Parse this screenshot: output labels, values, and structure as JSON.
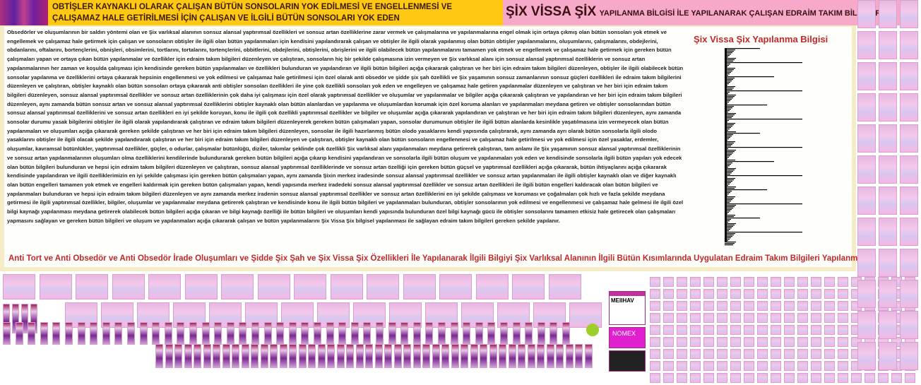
{
  "header": {
    "left_title": "OBTİŞLER KAYNAKLI OLARAK ÇALIŞAN BÜTÜN SONSOLARIN YOK EDİLMESİ VE ENGELLENMESİ VE ÇALIŞAMAZ HALE GETİRİLMESİ İÇİN ÇALIŞAN VE İLGİLİ BÜTÜN SONSOLARI YOK EDEN",
    "right_title_big": "ŞİX VİSSA ŞİX",
    "right_title_small": "YAPILANMA BİLGİSİ İLE YAPILANARAK ÇALIŞAN EDRAİM TAKIM BİLGİLERİ"
  },
  "main": {
    "paragraph": "Obsedörler ve oluşumlarının bir saldırı yöntemi olan ve Şix varlıksal alanının sonsuz alansal yaptırımsal özellikleri ve sonsuz artan özelliklerine zarar vermek ve çalışmalarına ve yapılanmalarına engel olmak için ortaya çıkmış olan bütün sonsoları yok etmek ve engellemek ve çalışamaz hale getirmek için çalışan ve sonsoların obtişler ile ilgili olan bütün yapılanmaları için kendisini yapılandırarak çalışan ve obtişler ile ilgili olarak yapılanmış olan bütün obtişler yapılanmalarını, oluşumlarını, çalışmalarını, obdejlerini, obdanlarını, oftalarını, bortençlerini, obnişleri, obsimlerini, tortlarını, tortalarını, tortençlerini, obbitlerini, obdejlerini, obtişlerini, obrişlerini ve ilgili olabilecek bütün yapılanmalarını tamamen yok etmek ve engellemek ve çalışamaz hale getirmek için gereken bütün çalışmaları yapan ve ortaya çıkan bütün yapılanmalar ve özellikler için edraim takım bilgileri düzenleyen ve çalıştıran, sonsoların hiç bir şekilde çalışmasına izin vermeyen ve Şix varlıksal alanı için sonsuz alansal yaptırımsal özelliklerin ve sonsuz artan yapılanmalarının her zaman ve koşulda çalışması için kendisinde gereken bütün yapılanmaları ve özellikleri bulunduran ve yapılandıran ve ilgili bütün bilgileri açığa çıkararak çalıştıran ve her biri için edraim takım bilgileri düzenleyen, obtişler ile ilgili olabilecek bütün sonsolar yapılanma ve özelliklerini ortaya çıkararak hepsinin engellenmesi ve yok edilmesi ve çalışamaz hale getirilmesi için özel olarak anti obsedör ve şidde şix şah özellikli ve Şix yaşamının sonsuz zamanlarının sonsuz güçleri özellikleri ile edraim takım bilgilerini düzenleyen ve çalıştıran, obtişler kaynaklı olan bütün sonsoları ortaya çıkararak anti obtişler sonsoları özellikleri ile yine çok özellikli sonsoları yok eden ve engelleyen ve çalışamaz hale getiren yapılanmalar düzenleyen ve çalıştıran ve her biri için edraim takım bilgileri düzenleyen, sonsuz alansal yaptırımsal özellikler ve sonsuz artan özelliklerinin çok daha iyi çalışması için özel olarak yaptırımsal özellikler ve oluşumlar ve yapılanmalar ve bilgiler açığa çıkararak çalıştıran ve yapılandıran ve her biri için edraim takım bilgileri düzenleyen, aynı zamanda bütün sonsuz artan ve sonsuz alansal yaptırımsal özelliklerini obtişler kaynaklı olan bütün alanlardan ve yapılanma ve oluşumlardan korumak için özel koruma alanları ve yapılanmaları meydana getiren ve obtişler sonsolarından bütün sonsuz alansal yaptırımsal özelliklerini ve sonsuz artan özellikleri en iyi şekilde koruyan, konu ile ilgili çok özellikli yaptırımsal özellikler ve bilgiler ve oluşumlar açığa çıkararak yapılandıran ve çalıştıran ve her biri için edraim takım bilgileri düzenleyen, aynı zamanda sonsolar durumu yasak bilgilerini obtişler ile ilgili olarak yapılandırarak çalıştıran ve edraim takım bilgileri düzenleyerek gereken bütün çalışmaları yapan, sonsolar durumunun obtişler ile ilgili bütün alanlarda kesinlikle yaşatılmasına izin vermeyecek olan bütün yapılanmaları ve oluşumları açığa çıkararak gereken şekilde çalıştıran ve her biri için edraim takım bilgileri düzenleyen, sonsolar ile ilgili hazırlanmış bütün olodo yasaklarını kendi yapısında çalıştırarak, aynı zamanda ayrı olarak bütün sonsolarla ilgili olodo yasaklarını obtişler ile ilgili olacak şekilde yapılandırarak çalıştıran ve her biri için edraim takım bilgileri düzenleyen ve çalıştıran, obtişler kaynaklı olan bütün sonsoların engellenmesi ve çalışamaz hale getirilmesi ve yok edilmesi için özel yasaklar, erdemler, oluşumlar, kavramsal bütünlükler, yaptırımsal özellikler, güçler, o odurlar, çalışmalar bütünlüğü, diziler, takımlar şeklinde çok özellikli Şix varlıksal alanı yapılanmaları meydana getirerek çalıştıran, tam anlamı ile Şix yaşamının sonsuz alansal yaptırımsal özelliklerinin ve sonsuz artan yapılanmalarının oluşumları olma özelliklerini kendilerinde bulundurarak gereken bütün bilgileri açığa çıkarıp kendisini yapılandıran ve sonsolarla ilgili bütün oluşum ve yapılanmaları yok eden ve kendisinde sonsolarla ilgili bütün yapıları yok edecek olan bütün bilgileri bulunduran ve hepsi için edraim takım bilgileri düzenleyen ve çalıştıran, sonsuz alansal yaptırımsal özelliklerinde ve sonsuz artan özelliği için gereken bütün güçsel ve yaptırımsal özellikleri açığa çıkararak, bütün ihtiyaçlarını açığa çıkararak kendisinde yapılandıran ve ilgili özelliklerimizin en iyi şekilde çalışması için gereken bütün çalışmaları yapan, aynı zamanda Şixin merkez iradesinde sonsuz alansal yaptırımsal özellikler ve sonsuz artan yapılanmaları ile ilgili obtişler kaynaklı olan ve diğer kaynaklı olan bütün engelleri tamamen yok etmek ve engelleri kaldırmak için gereken bütün çalışmaları yapan, kendi yapısında merkez iradedeki sonsuz alansal yaptırımsal özellikler ve sonsuz artan özellikleri ile ilgili bütün engelleri kaldıracak olan bütün bilgileri ve yapılanmaları bulunduran ve hepsi için edraim takım bilgileri düzenleyen ve aynı zamanda merkez iradenin sonsuz alansal yaptırımsal özellikler ve sonsuz artan özelliklerini en iyi şekilde çalışması ve koruması ve çoğalmaları çok hızlı ve fazla şekilde meydana getirmesi ile ilgili yaptırımsal özellikler, bilgiler, oluşumlar ve yapılanmalar meydana getirerek çalıştıran ve kendisinde konu ile ilgili bütün bilgileri ve yapılanmaları bulunduran, obtişler sonsolarının yok edilmesi ve engellenmesi ve çalışamaz hale gelmesi ile ilgili özel bilgi kaynağı yapılanması meydana getirerek olabilecek bütün bilgileri açığa çıkaran ve bilgi kaynağı özelliği ile bütün bilgileri ve oluşumları kendi yapısında bulunduran özel bilgi kaynağı gücü ile obtişler sonsolarını tamamen etkisiz hale getirecek olan çalışmaları yapmasını sağlayan ve gereken bütün bilgileri ve oluşum ve yapılanmaları açığa çıkararak çalışan ve bütün yapılanmalarını Şix Vissa Şix bilgisel yapılanması ile sağlayan edraim takım bilgileri gereken şekilde yapılanır.",
    "footer_title": "Anti Tort ve Anti Obsedör ve Anti Obsedör İrade Oluşumları ve Şidde Şix Şah ve Şix Vissa Şix Özellikleri İle Yapılanarak İlgili Bilgiyi Şix Varlıksal Alanının İlgili Bütün Kısımlarında Uygulatan Edraim Takım Bilgileri Yapılanması"
  },
  "sidebar": {
    "title": "Şix Vissa Şix Yapılanma Bilgisi"
  },
  "ads": {
    "top": "MEIIHAV",
    "middle": "NOMEX"
  },
  "colors": {
    "header_yellow": "#ffc812",
    "header_pink": "#f6a9c9",
    "title_red": "#c0282a",
    "panel": "#f4ecc6"
  }
}
